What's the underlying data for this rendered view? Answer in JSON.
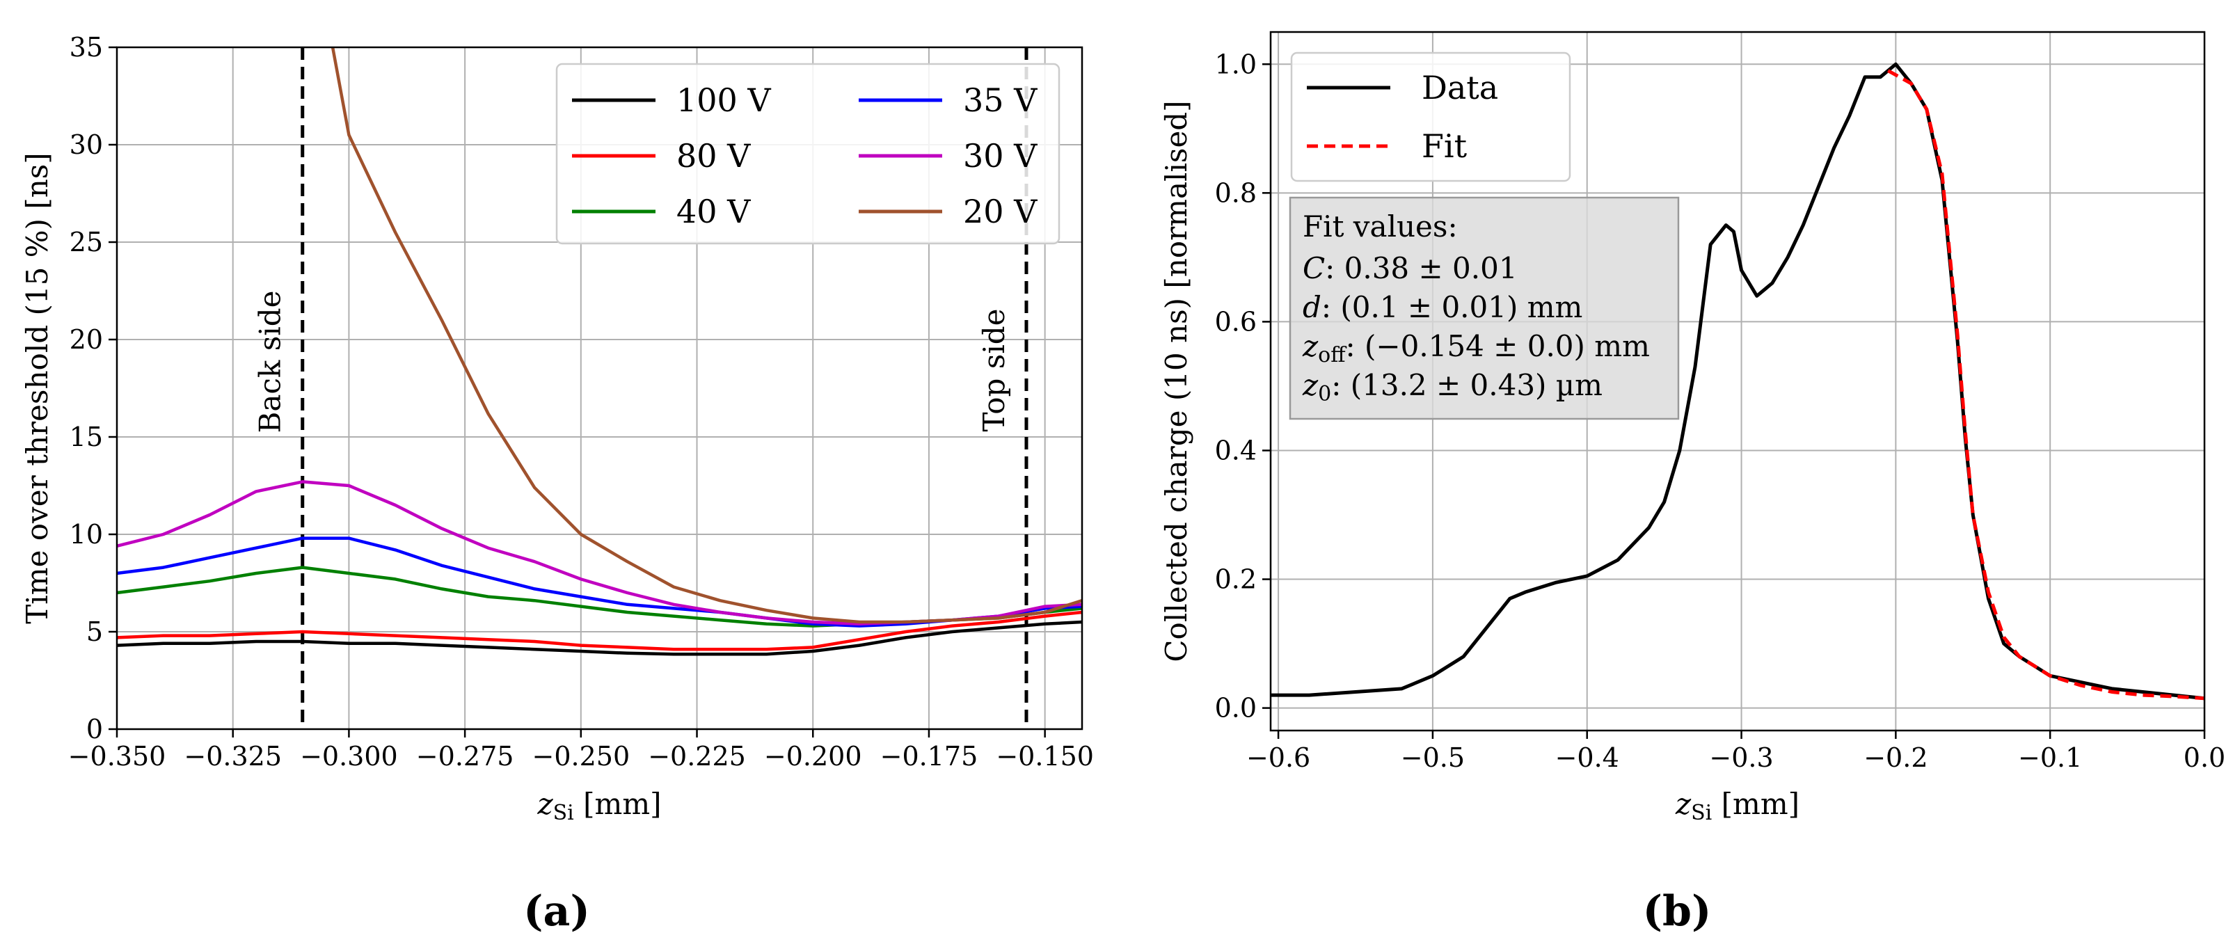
{
  "chart_data": [
    {
      "type": "line",
      "panel_label": "(a)",
      "title": "",
      "xlabel": "z_Si [mm]",
      "xlabel_parts": {
        "var": "z",
        "sub": "Si",
        "unit": " [mm]"
      },
      "ylabel": "Time over threshold (15 %) [ns]",
      "xlim": [
        -0.35,
        -0.142
      ],
      "ylim": [
        0,
        35
      ],
      "xticks": [
        -0.35,
        -0.325,
        -0.3,
        -0.275,
        -0.25,
        -0.225,
        -0.2,
        -0.175,
        -0.15
      ],
      "xtick_labels": [
        "−0.350",
        "−0.325",
        "−0.300",
        "−0.275",
        "−0.250",
        "−0.225",
        "−0.200",
        "−0.175",
        "−0.150"
      ],
      "yticks": [
        0,
        5,
        10,
        15,
        20,
        25,
        30,
        35
      ],
      "ytick_labels": [
        "0",
        "5",
        "10",
        "15",
        "20",
        "25",
        "30",
        "35"
      ],
      "grid": true,
      "legend_position": "top-right",
      "vlines": [
        {
          "x": -0.31,
          "label": "Back side",
          "style": "dashed",
          "color": "#000000"
        },
        {
          "x": -0.154,
          "label": "Top side",
          "style": "dashed",
          "color": "#000000"
        }
      ],
      "x": [
        -0.35,
        -0.34,
        -0.33,
        -0.32,
        -0.31,
        -0.3,
        -0.29,
        -0.28,
        -0.27,
        -0.26,
        -0.25,
        -0.24,
        -0.23,
        -0.22,
        -0.21,
        -0.2,
        -0.19,
        -0.18,
        -0.17,
        -0.16,
        -0.15,
        -0.142
      ],
      "series": [
        {
          "name": "100 V",
          "color": "#000000",
          "values": [
            4.3,
            4.4,
            4.4,
            4.5,
            4.5,
            4.4,
            4.4,
            4.3,
            4.2,
            4.1,
            4.0,
            3.9,
            3.85,
            3.85,
            3.85,
            4.0,
            4.3,
            4.7,
            5.0,
            5.2,
            5.4,
            5.5
          ]
        },
        {
          "name": "80 V",
          "color": "#ff0000",
          "values": [
            4.7,
            4.8,
            4.8,
            4.9,
            5.0,
            4.9,
            4.8,
            4.7,
            4.6,
            4.5,
            4.3,
            4.2,
            4.1,
            4.1,
            4.1,
            4.2,
            4.6,
            5.0,
            5.3,
            5.5,
            5.8,
            6.0
          ]
        },
        {
          "name": "40 V",
          "color": "#008000",
          "values": [
            7.0,
            7.3,
            7.6,
            8.0,
            8.3,
            8.0,
            7.7,
            7.2,
            6.8,
            6.6,
            6.3,
            6.0,
            5.8,
            5.6,
            5.4,
            5.3,
            5.4,
            5.5,
            5.6,
            5.7,
            6.0,
            6.2
          ]
        },
        {
          "name": "35 V",
          "color": "#0000ff",
          "values": [
            8.0,
            8.3,
            8.8,
            9.3,
            9.8,
            9.8,
            9.2,
            8.4,
            7.8,
            7.2,
            6.8,
            6.4,
            6.2,
            6.0,
            5.7,
            5.4,
            5.3,
            5.4,
            5.6,
            5.8,
            6.2,
            6.3
          ]
        },
        {
          "name": "30 V",
          "color": "#c000c0",
          "values": [
            9.4,
            10.0,
            11.0,
            12.2,
            12.7,
            12.5,
            11.5,
            10.3,
            9.3,
            8.6,
            7.7,
            7.0,
            6.4,
            6.0,
            5.7,
            5.5,
            5.4,
            5.5,
            5.6,
            5.8,
            6.3,
            6.4
          ]
        },
        {
          "name": "20 V",
          "color": "#a0522d",
          "values": [
            null,
            null,
            null,
            null,
            null,
            30.5,
            25.5,
            21.0,
            16.2,
            12.4,
            10.0,
            8.6,
            7.3,
            6.6,
            6.1,
            5.7,
            5.5,
            5.5,
            5.6,
            5.7,
            6.0,
            6.6
          ]
        }
      ],
      "series_20V_start": {
        "x": -0.3035,
        "y": 35
      }
    },
    {
      "type": "line",
      "panel_label": "(b)",
      "title": "",
      "xlabel": "z_Si [mm]",
      "xlabel_parts": {
        "var": "z",
        "sub": "Si",
        "unit": " [mm]"
      },
      "ylabel": "Collected charge (10 ns) [normalised]",
      "xlim": [
        -0.605,
        0.0
      ],
      "ylim": [
        -0.035,
        1.05
      ],
      "xticks": [
        -0.6,
        -0.5,
        -0.4,
        -0.3,
        -0.2,
        -0.1,
        0.0
      ],
      "xtick_labels": [
        "−0.6",
        "−0.5",
        "−0.4",
        "−0.3",
        "−0.2",
        "−0.1",
        "0.0"
      ],
      "yticks": [
        0.0,
        0.2,
        0.4,
        0.6,
        0.8,
        1.0
      ],
      "ytick_labels": [
        "0.0",
        "0.2",
        "0.4",
        "0.6",
        "0.8",
        "1.0"
      ],
      "grid": true,
      "legend_position": "top-left",
      "series": [
        {
          "name": "Data",
          "color": "#000000",
          "style": "solid",
          "x": [
            -0.605,
            -0.58,
            -0.55,
            -0.52,
            -0.5,
            -0.48,
            -0.46,
            -0.45,
            -0.44,
            -0.42,
            -0.4,
            -0.38,
            -0.36,
            -0.35,
            -0.34,
            -0.33,
            -0.32,
            -0.31,
            -0.305,
            -0.3,
            -0.29,
            -0.28,
            -0.27,
            -0.26,
            -0.25,
            -0.24,
            -0.23,
            -0.22,
            -0.21,
            -0.2,
            -0.19,
            -0.18,
            -0.17,
            -0.16,
            -0.155,
            -0.15,
            -0.14,
            -0.13,
            -0.12,
            -0.1,
            -0.08,
            -0.06,
            -0.04,
            -0.02,
            0.0
          ],
          "values": [
            0.02,
            0.02,
            0.025,
            0.03,
            0.05,
            0.08,
            0.14,
            0.17,
            0.18,
            0.195,
            0.205,
            0.23,
            0.28,
            0.32,
            0.4,
            0.53,
            0.72,
            0.75,
            0.74,
            0.68,
            0.64,
            0.66,
            0.7,
            0.75,
            0.81,
            0.87,
            0.92,
            0.98,
            0.98,
            1.0,
            0.97,
            0.93,
            0.82,
            0.57,
            0.42,
            0.3,
            0.17,
            0.1,
            0.08,
            0.05,
            0.04,
            0.03,
            0.025,
            0.02,
            0.015
          ]
        },
        {
          "name": "Fit",
          "color": "#ff0000",
          "style": "dashed",
          "x": [
            -0.205,
            -0.19,
            -0.18,
            -0.17,
            -0.16,
            -0.155,
            -0.15,
            -0.14,
            -0.13,
            -0.12,
            -0.1,
            -0.08,
            -0.06,
            -0.04,
            -0.02,
            0.0
          ],
          "values": [
            0.99,
            0.97,
            0.93,
            0.83,
            0.58,
            0.43,
            0.3,
            0.18,
            0.11,
            0.08,
            0.05,
            0.035,
            0.025,
            0.02,
            0.018,
            0.015
          ]
        }
      ],
      "fit_box": {
        "heading": "Fit values:",
        "rows": [
          {
            "var": "C",
            "sub": "",
            "value": ":  0.38 ± 0.01"
          },
          {
            "var": "d",
            "sub": "",
            "value": ":  (0.1 ± 0.01) mm"
          },
          {
            "var": "z",
            "sub": "off",
            "value": ":  (−0.154 ± 0.0) mm"
          },
          {
            "var": "z",
            "sub": "0",
            "value": ":  (13.2 ± 0.43) µm"
          }
        ]
      }
    }
  ]
}
